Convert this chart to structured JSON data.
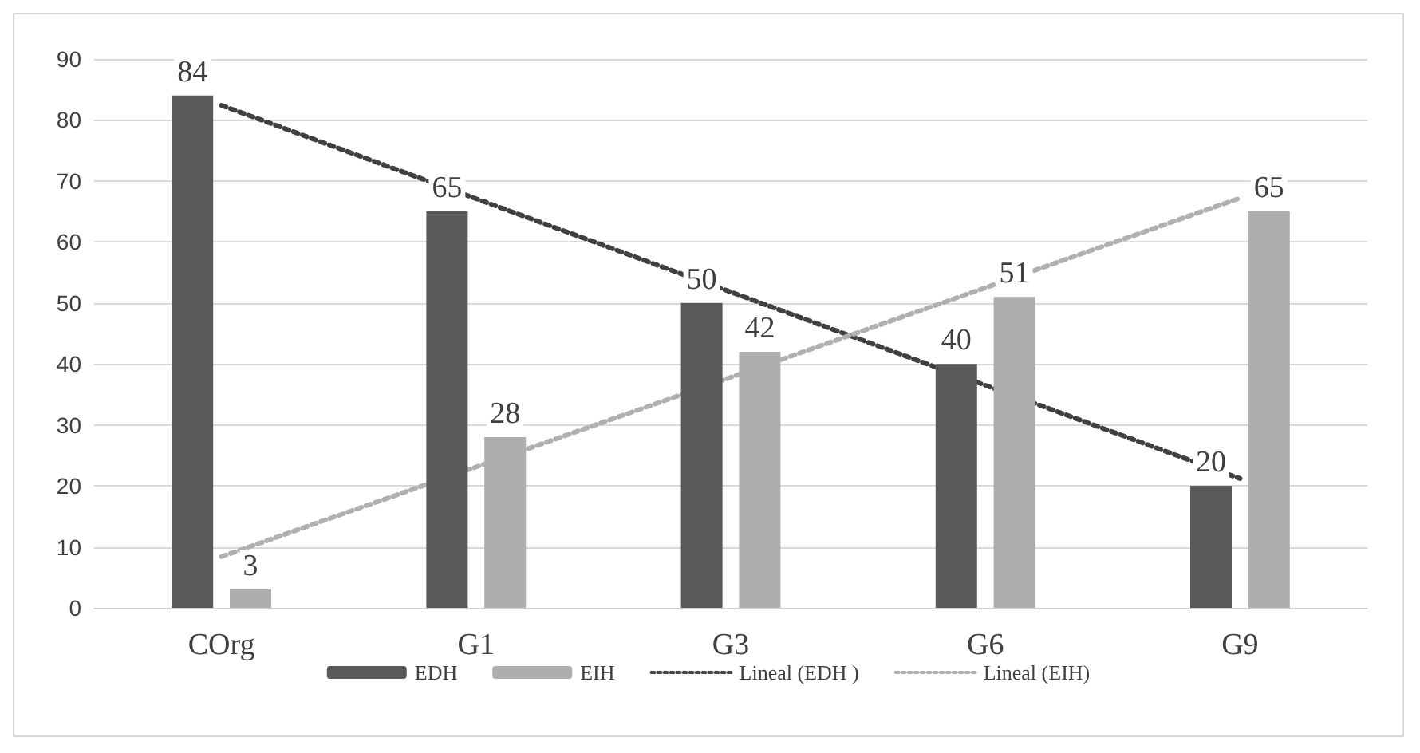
{
  "chart_data": {
    "type": "bar",
    "categories": [
      "COrg",
      "G1",
      "G3",
      "G6",
      "G9"
    ],
    "series": [
      {
        "name": "EDH",
        "color": "#595959",
        "values": [
          84,
          65,
          50,
          40,
          20
        ],
        "value_labels": [
          "84",
          "65",
          "50",
          "40",
          "20"
        ]
      },
      {
        "name": "EIH",
        "color": "#aeaeae",
        "values": [
          3,
          28,
          42,
          51,
          65
        ],
        "value_labels": [
          "3",
          "28",
          "42",
          "51",
          "65"
        ]
      },
      {
        "name": "Lineal (EDH )",
        "type": "line",
        "color": "#404040",
        "x": [
          "COrg",
          "G9"
        ],
        "values": [
          82.4,
          21.2
        ],
        "line_style": "dotted",
        "marker": "none"
      },
      {
        "name": "Lineal (EIH)",
        "type": "line",
        "color": "#b0b0b0",
        "x": [
          "COrg",
          "G9"
        ],
        "values": [
          8.4,
          67.2
        ],
        "line_style": "dotted",
        "marker": "none"
      }
    ],
    "ylim": [
      0,
      90
    ],
    "yticks": [
      0,
      10,
      20,
      30,
      40,
      50,
      60,
      70,
      80,
      90
    ],
    "grid": "y",
    "legend": "bottom"
  }
}
